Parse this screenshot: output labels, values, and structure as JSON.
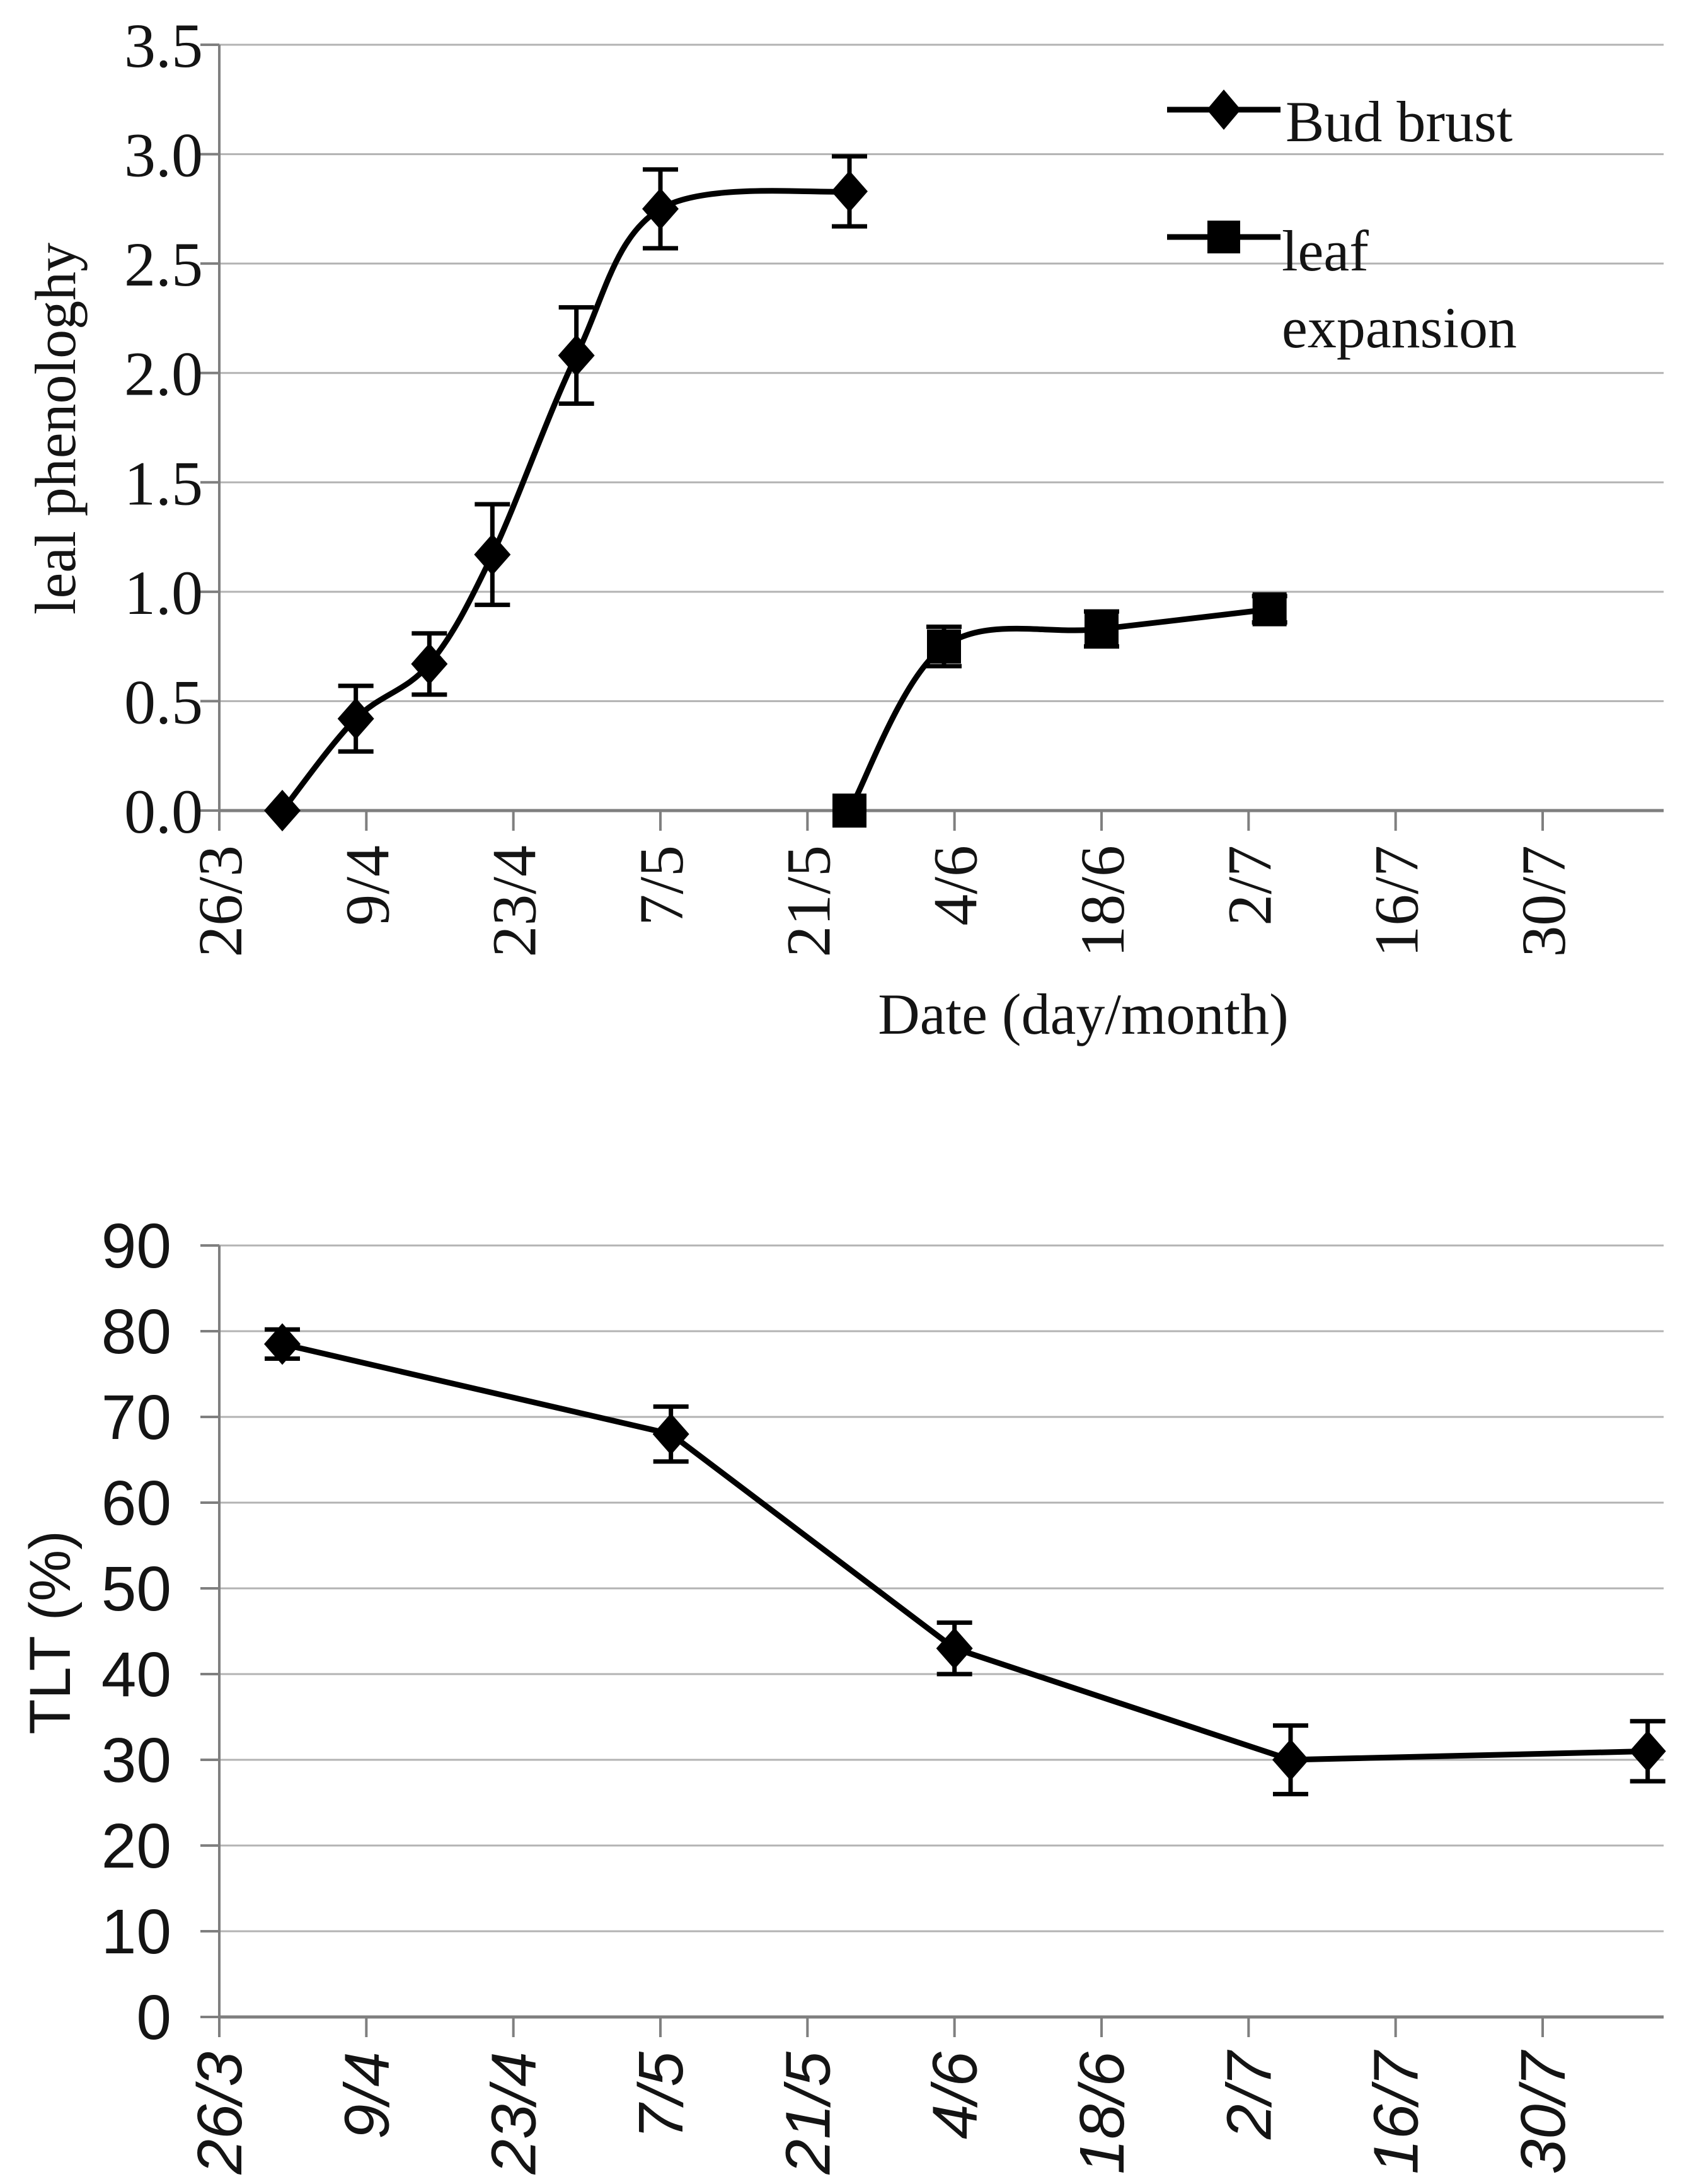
{
  "chart_data": [
    {
      "type": "line",
      "title": "",
      "xlabel": "Date (day/month)",
      "ylabel": "leal phenologhy",
      "ylim": [
        0,
        3.5
      ],
      "ytick_step": 0.5,
      "ytick_labels": [
        "3.5",
        "3.0",
        "2.5",
        "2.0",
        "1.5",
        "1.0",
        "0.5",
        "0.0"
      ],
      "xtick_labels": [
        "26/3",
        "9/4",
        "23/4",
        "7/5",
        "21/5",
        "4/6",
        "18/6",
        "2/7",
        "16/7",
        "30/7"
      ],
      "xtick_days": [
        0,
        14,
        28,
        42,
        56,
        70,
        84,
        98,
        112,
        126
      ],
      "x_axis_day_range": [
        0,
        137.5
      ],
      "grid": true,
      "legend_position": "top-right-inside",
      "legend": [
        {
          "label": "Bud brust",
          "marker": "diamond"
        },
        {
          "label": "leaf expansion",
          "marker": "square"
        }
      ],
      "series": [
        {
          "name": "Bud brust",
          "marker": "diamond",
          "smooth": true,
          "x_days": [
            6,
            13,
            20,
            26,
            34,
            42,
            60
          ],
          "x_dates": [
            "1/4",
            "8/4",
            "15/4",
            "21/4",
            "29/4",
            "7/5",
            "25/5"
          ],
          "values": [
            0.0,
            0.42,
            0.67,
            1.17,
            2.08,
            2.75,
            2.83
          ],
          "errors": [
            0,
            0.15,
            0.14,
            0.23,
            0.22,
            0.18,
            0.16
          ]
        },
        {
          "name": "leaf expansion",
          "marker": "square",
          "smooth": true,
          "x_days": [
            60,
            69,
            84,
            100
          ],
          "x_dates": [
            "25/5",
            "3/6",
            "18/6",
            "4/7"
          ],
          "values": [
            0.0,
            0.75,
            0.83,
            0.92
          ],
          "errors": [
            0,
            0.09,
            0.08,
            0.06
          ]
        }
      ]
    },
    {
      "type": "line",
      "title": "",
      "xlabel": "",
      "ylabel": "TLT (%)",
      "ylim": [
        0,
        90
      ],
      "ytick_step": 10,
      "ytick_labels": [
        "90",
        "80",
        "70",
        "60",
        "50",
        "40",
        "30",
        "20",
        "10",
        "0"
      ],
      "xtick_labels": [
        "26/3",
        "9/4",
        "23/4",
        "7/5",
        "21/5",
        "4/6",
        "18/6",
        "2/7",
        "16/7",
        "30/7"
      ],
      "xtick_days": [
        0,
        14,
        28,
        42,
        56,
        70,
        84,
        98,
        112,
        126
      ],
      "x_axis_day_range": [
        0,
        137.5
      ],
      "grid": true,
      "legend": [],
      "series": [
        {
          "name": "TLT",
          "marker": "diamond",
          "smooth": false,
          "x_days": [
            6,
            43,
            70,
            102,
            136
          ],
          "x_dates": [
            "1/4",
            "8/5",
            "4/6",
            "6/7",
            "8/8"
          ],
          "values": [
            78.5,
            68,
            43,
            30,
            31
          ],
          "errors": [
            1.7,
            3.2,
            3.0,
            4.0,
            3.5
          ]
        }
      ]
    }
  ],
  "style": {
    "series_color": "#000000",
    "gridline_color": "#b3b3b3",
    "axis_color": "#7f7f7f",
    "text_color": "#141414"
  }
}
